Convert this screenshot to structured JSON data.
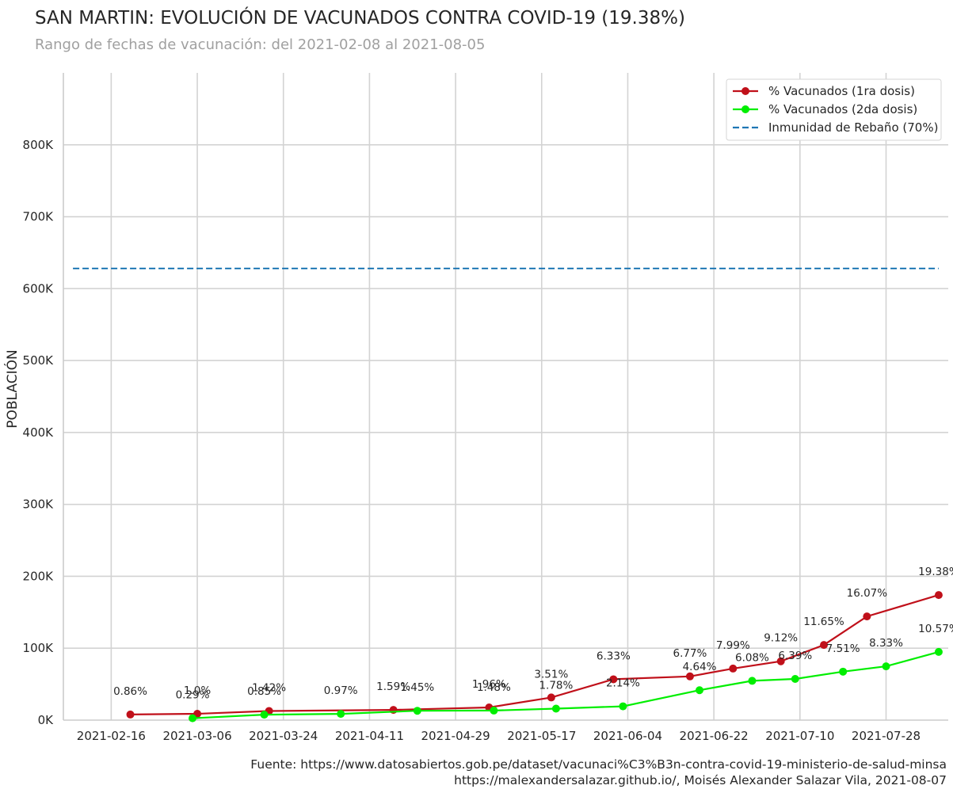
{
  "chart_data": {
    "type": "line",
    "title": "SAN MARTIN: EVOLUCIÓN DE VACUNADOS CONTRA COVID-19 (19.38%)",
    "subtitle": "Rango de fechas de vacunación: del 2021-02-08 al 2021-08-05",
    "ylabel": "POBLACIÓN",
    "xlabel": "",
    "ylim": [
      0,
      900000
    ],
    "xlim": [
      "2021-02-06",
      "2021-08-10"
    ],
    "x_ticks": [
      "2021-02-16",
      "2021-03-06",
      "2021-03-24",
      "2021-04-11",
      "2021-04-29",
      "2021-05-17",
      "2021-06-04",
      "2021-06-22",
      "2021-07-10",
      "2021-07-28"
    ],
    "y_ticks": [
      0,
      100000,
      200000,
      300000,
      400000,
      500000,
      600000,
      700000,
      800000
    ],
    "y_tick_labels": [
      "0K",
      "100K",
      "200K",
      "300K",
      "400K",
      "500K",
      "600K",
      "700K",
      "800K"
    ],
    "grid": true,
    "legend_position": "top-right",
    "series": [
      {
        "name": "% Vacunados (1ra dosis)",
        "color": "#c0101a",
        "x": [
          "2021-02-20",
          "2021-03-06",
          "2021-03-21",
          "2021-04-16",
          "2021-05-06",
          "2021-05-19",
          "2021-06-01",
          "2021-06-17",
          "2021-06-26",
          "2021-07-06",
          "2021-07-15",
          "2021-07-24",
          "2021-08-08"
        ],
        "y": [
          7800,
          8800,
          12700,
          14200,
          17600,
          31500,
          56800,
          60800,
          71700,
          81800,
          104500,
          144200,
          173900
        ],
        "labels": [
          "0.86%",
          "1.0%",
          "1.42%",
          "1.59%",
          "1.96%",
          "3.51%",
          "6.33%",
          "6.77%",
          "7.99%",
          "9.12%",
          "11.65%",
          "16.07%",
          "19.38%"
        ]
      },
      {
        "name": "% Vacunados (2da dosis)",
        "color": "#00ee00",
        "x": [
          "2021-03-05",
          "2021-03-20",
          "2021-04-05",
          "2021-04-21",
          "2021-05-07",
          "2021-05-20",
          "2021-06-03",
          "2021-06-19",
          "2021-06-30",
          "2021-07-09",
          "2021-07-19",
          "2021-07-28",
          "2021-08-08"
        ],
        "y": [
          2600,
          7600,
          8700,
          13000,
          13300,
          16000,
          19200,
          41600,
          54600,
          57300,
          67400,
          74800,
          94900
        ],
        "labels": [
          "0.29%",
          "0.85%",
          "0.97%",
          "1.45%",
          "1.48%",
          "1.78%",
          "2.14%",
          "4.64%",
          "6.08%",
          "6.39%",
          "7.51%",
          "8.33%",
          "10.57%"
        ]
      },
      {
        "name": "Inmunidad de Rebaño (70%)",
        "color": "#1f77b4",
        "style": "dashed",
        "x": [
          "2021-02-08",
          "2021-08-08"
        ],
        "y": [
          628000,
          628000
        ]
      }
    ]
  },
  "footer": {
    "source_line": "Fuente: https://www.datosabiertos.gob.pe/dataset/vacunaci%C3%B3n-contra-covid-19-ministerio-de-salud-minsa",
    "author_line": "https://malexandersalazar.github.io/, Moisés Alexander Salazar Vila, 2021-08-07"
  }
}
